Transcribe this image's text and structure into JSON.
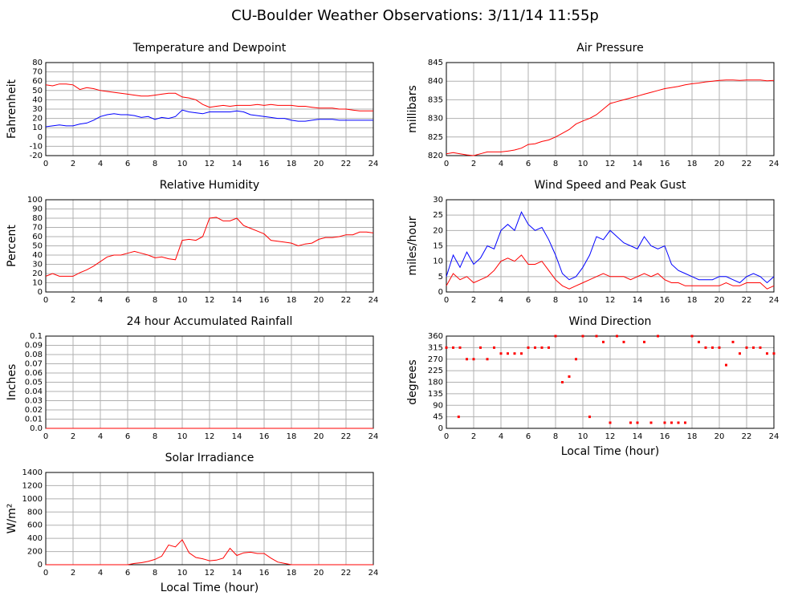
{
  "title": "CU-Boulder Weather Observations: 3/11/14 11:55p",
  "chart_data": [
    {
      "type": "line",
      "title": "Temperature and Dewpoint",
      "ylabel": "Fahrenheit",
      "x": [
        0,
        0.5,
        1,
        1.5,
        2,
        2.5,
        3,
        3.5,
        4,
        4.5,
        5,
        5.5,
        6,
        6.5,
        7,
        7.5,
        8,
        8.5,
        9,
        9.5,
        10,
        10.5,
        11,
        11.5,
        12,
        12.5,
        13,
        13.5,
        14,
        14.5,
        15,
        15.5,
        16,
        16.5,
        17,
        17.5,
        18,
        18.5,
        19,
        19.5,
        20,
        20.5,
        21,
        21.5,
        22,
        22.5,
        23,
        23.5,
        24
      ],
      "series": [
        {
          "color": "#ff0000",
          "values": [
            56,
            55,
            57,
            57,
            56,
            51,
            53,
            52,
            50,
            49,
            48,
            47,
            46,
            45,
            44,
            44,
            45,
            46,
            47,
            47,
            43,
            42,
            40,
            35,
            32,
            33,
            34,
            33,
            34,
            34,
            34,
            35,
            34,
            35,
            34,
            34,
            34,
            33,
            33,
            32,
            31,
            31,
            31,
            30,
            30,
            29,
            28,
            28,
            28
          ]
        },
        {
          "color": "#0000ff",
          "values": [
            11,
            12,
            13,
            12,
            12,
            14,
            15,
            18,
            22,
            24,
            25,
            24,
            24,
            23,
            21,
            22,
            19,
            21,
            20,
            22,
            29,
            27,
            26,
            25,
            27,
            27,
            27,
            27,
            28,
            27,
            24,
            23,
            22,
            21,
            20,
            20,
            18,
            17,
            17,
            18,
            19,
            19,
            19,
            18,
            18,
            18,
            18,
            18,
            18
          ]
        }
      ],
      "xlim": [
        0,
        24
      ],
      "xticks": [
        0,
        2,
        4,
        6,
        8,
        10,
        12,
        14,
        16,
        18,
        20,
        22,
        24
      ],
      "ylim": [
        -20,
        80
      ],
      "yticks": [
        -20,
        -10,
        0,
        10,
        20,
        30,
        40,
        50,
        60,
        70,
        80
      ],
      "grid": true
    },
    {
      "type": "line",
      "title": "Air Pressure",
      "ylabel": "millibars",
      "x": [
        0,
        0.5,
        1,
        1.5,
        2,
        2.5,
        3,
        3.5,
        4,
        4.5,
        5,
        5.5,
        6,
        6.5,
        7,
        7.5,
        8,
        8.5,
        9,
        9.5,
        10,
        10.5,
        11,
        11.5,
        12,
        12.5,
        13,
        13.5,
        14,
        14.5,
        15,
        15.5,
        16,
        16.5,
        17,
        17.5,
        18,
        18.5,
        19,
        19.5,
        20,
        20.5,
        21,
        21.5,
        22,
        22.5,
        23,
        23.5,
        24
      ],
      "series": [
        {
          "color": "#ff0000",
          "values": [
            820.5,
            820.8,
            820.5,
            820.2,
            820,
            820.5,
            821,
            821,
            821,
            821.2,
            821.5,
            822,
            823,
            823.2,
            823.8,
            824.2,
            825,
            826,
            827,
            828.5,
            829.3,
            830,
            831,
            832.5,
            834,
            834.5,
            835,
            835.5,
            836,
            836.5,
            837,
            837.5,
            838,
            838.3,
            838.6,
            839,
            839.3,
            839.5,
            839.8,
            840,
            840.2,
            840.3,
            840.3,
            840.2,
            840.3,
            840.3,
            840.3,
            840.1,
            840.2
          ]
        }
      ],
      "xlim": [
        0,
        24
      ],
      "xticks": [
        0,
        2,
        4,
        6,
        8,
        10,
        12,
        14,
        16,
        18,
        20,
        22,
        24
      ],
      "ylim": [
        820,
        845
      ],
      "yticks": [
        820,
        825,
        830,
        835,
        840,
        845
      ],
      "grid": true
    },
    {
      "type": "line",
      "title": "Relative Humidity",
      "ylabel": "Percent",
      "x": [
        0,
        0.5,
        1,
        1.5,
        2,
        2.5,
        3,
        3.5,
        4,
        4.5,
        5,
        5.5,
        6,
        6.5,
        7,
        7.5,
        8,
        8.5,
        9,
        9.5,
        10,
        10.5,
        11,
        11.5,
        12,
        12.5,
        13,
        13.5,
        14,
        14.5,
        15,
        15.5,
        16,
        16.5,
        17,
        17.5,
        18,
        18.5,
        19,
        19.5,
        20,
        20.5,
        21,
        21.5,
        22,
        22.5,
        23,
        23.5,
        24
      ],
      "series": [
        {
          "color": "#ff0000",
          "values": [
            17,
            20,
            17,
            17,
            17,
            21,
            24,
            28,
            33,
            38,
            40,
            40,
            42,
            44,
            42,
            40,
            37,
            38,
            36,
            35,
            56,
            57,
            56,
            60,
            80,
            81,
            77,
            77,
            80,
            72,
            69,
            66,
            63,
            56,
            55,
            54,
            53,
            50,
            52,
            53,
            57,
            59,
            59,
            60,
            62,
            62,
            65,
            65,
            64
          ]
        }
      ],
      "xlim": [
        0,
        24
      ],
      "xticks": [
        0,
        2,
        4,
        6,
        8,
        10,
        12,
        14,
        16,
        18,
        20,
        22,
        24
      ],
      "ylim": [
        0,
        100
      ],
      "yticks": [
        0,
        10,
        20,
        30,
        40,
        50,
        60,
        70,
        80,
        90,
        100
      ],
      "grid": true
    },
    {
      "type": "line",
      "title": "Wind Speed and Peak Gust",
      "ylabel": "miles/hour",
      "x": [
        0,
        0.5,
        1,
        1.5,
        2,
        2.5,
        3,
        3.5,
        4,
        4.5,
        5,
        5.5,
        6,
        6.5,
        7,
        7.5,
        8,
        8.5,
        9,
        9.5,
        10,
        10.5,
        11,
        11.5,
        12,
        12.5,
        13,
        13.5,
        14,
        14.5,
        15,
        15.5,
        16,
        16.5,
        17,
        17.5,
        18,
        18.5,
        19,
        19.5,
        20,
        20.5,
        21,
        21.5,
        22,
        22.5,
        23,
        23.5,
        24
      ],
      "series": [
        {
          "color": "#0000ff",
          "values": [
            5,
            12,
            8,
            13,
            9,
            11,
            15,
            14,
            20,
            22,
            20,
            26,
            22,
            20,
            21,
            17,
            12,
            6,
            4,
            5,
            8,
            12,
            18,
            17,
            20,
            18,
            16,
            15,
            14,
            18,
            15,
            14,
            15,
            9,
            7,
            6,
            5,
            4,
            4,
            4,
            5,
            5,
            4,
            3,
            5,
            6,
            5,
            3,
            5
          ]
        },
        {
          "color": "#ff0000",
          "values": [
            2,
            6,
            4,
            5,
            3,
            4,
            5,
            7,
            10,
            11,
            10,
            12,
            9,
            9,
            10,
            7,
            4,
            2,
            1,
            2,
            3,
            4,
            5,
            6,
            5,
            5,
            5,
            4,
            5,
            6,
            5,
            6,
            4,
            3,
            3,
            2,
            2,
            2,
            2,
            2,
            2,
            3,
            2,
            2,
            3,
            3,
            3,
            1,
            2
          ]
        }
      ],
      "xlim": [
        0,
        24
      ],
      "xticks": [
        0,
        2,
        4,
        6,
        8,
        10,
        12,
        14,
        16,
        18,
        20,
        22,
        24
      ],
      "ylim": [
        0,
        30
      ],
      "yticks": [
        0,
        5,
        10,
        15,
        20,
        25,
        30
      ],
      "grid": true
    },
    {
      "type": "line",
      "title": "24 hour Accumulated Rainfall",
      "ylabel": "Inches",
      "x": [
        0,
        24
      ],
      "series": [
        {
          "color": "#ff0000",
          "values": [
            0,
            0
          ]
        }
      ],
      "xlim": [
        0,
        24
      ],
      "xticks": [
        0,
        2,
        4,
        6,
        8,
        10,
        12,
        14,
        16,
        18,
        20,
        22,
        24
      ],
      "ylim": [
        0,
        0.1
      ],
      "yticks": [
        {
          "value": 0,
          "label": "0.0"
        },
        0.01,
        0.02,
        0.03,
        0.04,
        0.05,
        0.06,
        0.07,
        0.08,
        0.09,
        0.1
      ],
      "grid": true
    },
    {
      "type": "scatter",
      "title": "Wind Direction",
      "ylabel": "degrees",
      "xlabel": "Local Time (hour)",
      "x": [
        0,
        0.5,
        0.9,
        1,
        1.5,
        2,
        2.5,
        3,
        3.5,
        4,
        4.5,
        5,
        5.5,
        6,
        6.5,
        7,
        7.5,
        8,
        8.5,
        9,
        9.5,
        10,
        10.5,
        11,
        11.5,
        12,
        12.5,
        13,
        13.5,
        14,
        14.5,
        15,
        15.5,
        16,
        16.5,
        17,
        17.5,
        18,
        18.5,
        19,
        19.5,
        20,
        20.5,
        21,
        21.5,
        22,
        22.5,
        23,
        23.5,
        24
      ],
      "series": [
        {
          "color": "#ff0000",
          "values": [
            315,
            315,
            45,
            315,
            270,
            270,
            315,
            270,
            315,
            292,
            292,
            292,
            292,
            315,
            315,
            315,
            315,
            360,
            180,
            202,
            270,
            360,
            45,
            360,
            337,
            22,
            360,
            337,
            22,
            22,
            337,
            22,
            360,
            22,
            22,
            22,
            22,
            360,
            337,
            315,
            315,
            315,
            247,
            337,
            292,
            315,
            315,
            315,
            292,
            292
          ]
        }
      ],
      "xlim": [
        0,
        24
      ],
      "xticks": [
        0,
        2,
        4,
        6,
        8,
        10,
        12,
        14,
        16,
        18,
        20,
        22,
        24
      ],
      "ylim": [
        0,
        360
      ],
      "yticks": [
        0,
        45,
        90,
        135,
        180,
        225,
        270,
        315,
        360
      ],
      "grid": true
    },
    {
      "type": "line",
      "title": "Solar Irradiance",
      "ylabel": "W/m²",
      "xlabel": "Local Time (hour)",
      "x": [
        0,
        0.5,
        1,
        1.5,
        2,
        2.5,
        3,
        3.5,
        4,
        4.5,
        5,
        5.5,
        6,
        6.5,
        7,
        7.5,
        8,
        8.5,
        9,
        9.5,
        10,
        10.5,
        11,
        11.5,
        12,
        12.5,
        13,
        13.5,
        14,
        14.5,
        15,
        15.5,
        16,
        16.5,
        17,
        17.5,
        18,
        18.5,
        19,
        19.5,
        20,
        20.5,
        21,
        21.5,
        22,
        22.5,
        23,
        23.5,
        24
      ],
      "series": [
        {
          "color": "#ff0000",
          "values": [
            0,
            0,
            0,
            0,
            0,
            0,
            0,
            0,
            0,
            0,
            0,
            0,
            0,
            20,
            30,
            50,
            80,
            130,
            300,
            270,
            380,
            180,
            110,
            90,
            60,
            70,
            100,
            250,
            140,
            180,
            190,
            170,
            170,
            100,
            40,
            20,
            0,
            0,
            0,
            0,
            0,
            0,
            0,
            0,
            0,
            0,
            0,
            0,
            0
          ]
        }
      ],
      "xlim": [
        0,
        24
      ],
      "xticks": [
        0,
        2,
        4,
        6,
        8,
        10,
        12,
        14,
        16,
        18,
        20,
        22,
        24
      ],
      "ylim": [
        0,
        1400
      ],
      "yticks": [
        0,
        200,
        400,
        600,
        800,
        1000,
        1200,
        1400
      ],
      "grid": true
    }
  ]
}
